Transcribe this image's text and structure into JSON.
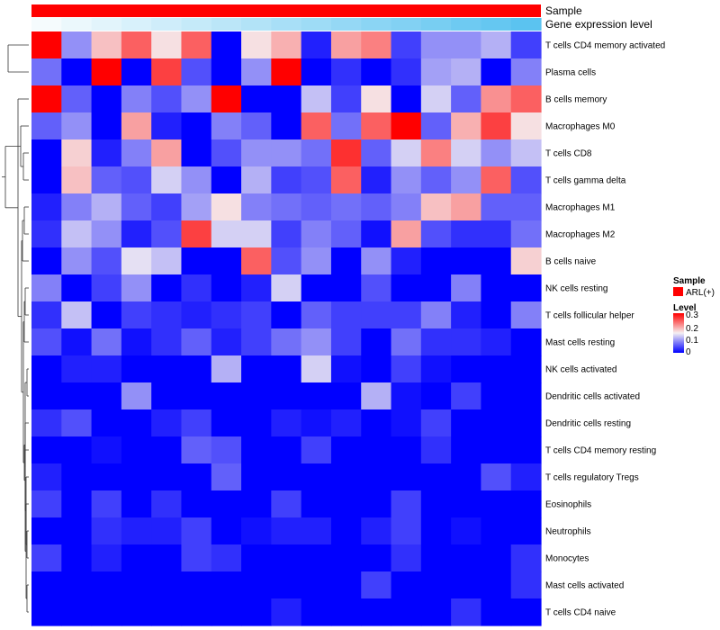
{
  "chart_data": {
    "type": "heatmap",
    "title": "",
    "annotation_tracks": [
      {
        "label": "Sample",
        "kind": "categorical",
        "value": "ARL(+)",
        "color": "#FF0000"
      },
      {
        "label": "Gene expression level",
        "kind": "gradient",
        "color_from": "#F5FBFD",
        "color_to": "#5BC3F0"
      }
    ],
    "rows": [
      "T cells CD4 memory activated",
      "Plasma cells",
      "B cells memory",
      "Macrophages M0",
      "T cells CD8",
      "T cells gamma delta",
      "Macrophages M1",
      "Macrophages M2",
      "B cells naive",
      "NK cells resting",
      "T cells follicular helper",
      "Mast cells resting",
      "NK cells activated",
      "Dendritic cells activated",
      "Dendritic cells resting",
      "T cells CD4 memory resting",
      "T cells regulatory  Tregs",
      "Eosinophils",
      "Neutrophils",
      "Monocytes",
      "Mast cells activated",
      "T cells CD4 naive"
    ],
    "n_columns": 17,
    "values": [
      [
        0.3,
        0.09,
        0.18,
        0.24,
        0.16,
        0.24,
        0.0,
        0.16,
        0.19,
        0.02,
        0.2,
        0.22,
        0.04,
        0.09,
        0.09,
        0.11,
        0.04
      ],
      [
        0.07,
        0.0,
        0.3,
        0.0,
        0.26,
        0.05,
        0.0,
        0.09,
        0.3,
        0.0,
        0.03,
        0.0,
        0.03,
        0.1,
        0.11,
        0.0,
        0.08
      ],
      [
        0.3,
        0.06,
        0.0,
        0.08,
        0.05,
        0.09,
        0.3,
        0.0,
        0.0,
        0.12,
        0.04,
        0.16,
        0.0,
        0.13,
        0.06,
        0.21,
        0.24
      ],
      [
        0.06,
        0.09,
        0.0,
        0.2,
        0.02,
        0.0,
        0.08,
        0.06,
        0.0,
        0.24,
        0.07,
        0.24,
        0.3,
        0.06,
        0.19,
        0.26,
        0.16
      ],
      [
        0.0,
        0.17,
        0.02,
        0.08,
        0.2,
        0.0,
        0.05,
        0.09,
        0.09,
        0.07,
        0.27,
        0.06,
        0.13,
        0.22,
        0.13,
        0.09,
        0.12
      ],
      [
        0.0,
        0.18,
        0.06,
        0.05,
        0.13,
        0.09,
        0.0,
        0.11,
        0.04,
        0.05,
        0.24,
        0.02,
        0.09,
        0.06,
        0.09,
        0.24,
        0.05
      ],
      [
        0.02,
        0.08,
        0.11,
        0.06,
        0.04,
        0.1,
        0.16,
        0.08,
        0.07,
        0.06,
        0.07,
        0.06,
        0.08,
        0.18,
        0.2,
        0.06,
        0.06
      ],
      [
        0.03,
        0.12,
        0.09,
        0.02,
        0.05,
        0.26,
        0.13,
        0.13,
        0.04,
        0.08,
        0.06,
        0.01,
        0.2,
        0.05,
        0.03,
        0.03,
        0.07
      ],
      [
        0.0,
        0.09,
        0.05,
        0.14,
        0.12,
        0.0,
        0.0,
        0.24,
        0.05,
        0.09,
        0.0,
        0.09,
        0.02,
        0.0,
        0.0,
        0.0,
        0.17
      ],
      [
        0.08,
        0.0,
        0.04,
        0.09,
        0.0,
        0.03,
        0.0,
        0.02,
        0.13,
        0.0,
        0.0,
        0.05,
        0.0,
        0.0,
        0.08,
        0.0,
        0.0
      ],
      [
        0.03,
        0.12,
        0.0,
        0.04,
        0.03,
        0.02,
        0.03,
        0.04,
        0.0,
        0.06,
        0.04,
        0.04,
        0.04,
        0.08,
        0.02,
        0.0,
        0.08
      ],
      [
        0.05,
        0.01,
        0.07,
        0.01,
        0.03,
        0.06,
        0.02,
        0.04,
        0.07,
        0.09,
        0.04,
        0.0,
        0.07,
        0.03,
        0.03,
        0.02,
        0.0
      ],
      [
        0.0,
        0.02,
        0.02,
        0.0,
        0.0,
        0.0,
        0.11,
        0.0,
        0.0,
        0.13,
        0.01,
        0.0,
        0.04,
        0.01,
        0.0,
        0.0,
        0.0
      ],
      [
        0.0,
        0.0,
        0.0,
        0.09,
        0.0,
        0.0,
        0.0,
        0.0,
        0.0,
        0.0,
        0.0,
        0.11,
        0.01,
        0.0,
        0.04,
        0.0,
        0.0
      ],
      [
        0.03,
        0.05,
        0.0,
        0.0,
        0.02,
        0.04,
        0.0,
        0.0,
        0.02,
        0.01,
        0.02,
        0.0,
        0.01,
        0.04,
        0.0,
        0.0,
        0.0
      ],
      [
        0.0,
        0.0,
        0.01,
        0.0,
        0.0,
        0.06,
        0.05,
        0.0,
        0.0,
        0.04,
        0.0,
        0.0,
        0.0,
        0.03,
        0.0,
        0.0,
        0.0
      ],
      [
        0.02,
        0.0,
        0.0,
        0.0,
        0.0,
        0.0,
        0.06,
        0.0,
        0.0,
        0.0,
        0.0,
        0.0,
        0.0,
        0.0,
        0.0,
        0.05,
        0.02
      ],
      [
        0.04,
        0.0,
        0.04,
        0.0,
        0.03,
        0.0,
        0.0,
        0.0,
        0.04,
        0.0,
        0.0,
        0.0,
        0.04,
        0.0,
        0.0,
        0.0,
        0.0
      ],
      [
        0.0,
        0.0,
        0.03,
        0.02,
        0.02,
        0.04,
        0.0,
        0.01,
        0.02,
        0.02,
        0.0,
        0.02,
        0.04,
        0.0,
        0.01,
        0.0,
        0.0
      ],
      [
        0.04,
        0.0,
        0.02,
        0.0,
        0.0,
        0.04,
        0.03,
        0.0,
        0.0,
        0.0,
        0.0,
        0.0,
        0.03,
        0.0,
        0.0,
        0.0,
        0.03
      ],
      [
        0.0,
        0.0,
        0.0,
        0.0,
        0.0,
        0.0,
        0.0,
        0.0,
        0.0,
        0.0,
        0.0,
        0.04,
        0.0,
        0.0,
        0.0,
        0.0,
        0.03
      ],
      [
        0.0,
        0.0,
        0.0,
        0.0,
        0.0,
        0.0,
        0.0,
        0.0,
        0.02,
        0.0,
        0.0,
        0.0,
        0.0,
        0.0,
        0.03,
        0.0,
        0.0
      ]
    ],
    "color_scale": {
      "min": 0,
      "mid": 0.15,
      "max": 0.3,
      "colors": [
        "#0000FF",
        "#F5F0F2",
        "#FF0000"
      ]
    },
    "legend": {
      "sample_title": "Sample",
      "sample_entry": "ARL(+)",
      "level_title": "Level",
      "level_ticks": [
        "0.3",
        "0.2",
        "0.1",
        "0"
      ],
      "placement": "right"
    },
    "dendrogram": {
      "side": "left"
    }
  }
}
